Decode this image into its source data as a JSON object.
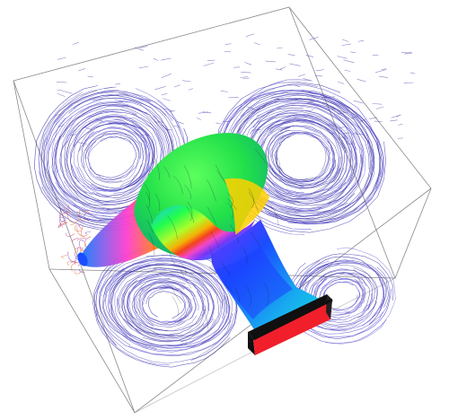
{
  "scene": {
    "description_visible_text": "",
    "background_color": "#ffffff",
    "box_edge_color": "#8a8a8a",
    "streamline_colors": [
      "#3d36a8",
      "#5a4fd0",
      "#7a3fbf",
      "#c44a7a",
      "#e06a3a"
    ],
    "duct_surface_gradient": [
      "#ff2a1a",
      "#ff8c00",
      "#ffe600",
      "#4cff2a",
      "#15e3c8",
      "#1a7cff",
      "#7a2fff",
      "#ff3fd0"
    ],
    "outlet_face_color": "#f01f2a",
    "outlet_rim_color": "#101010"
  }
}
